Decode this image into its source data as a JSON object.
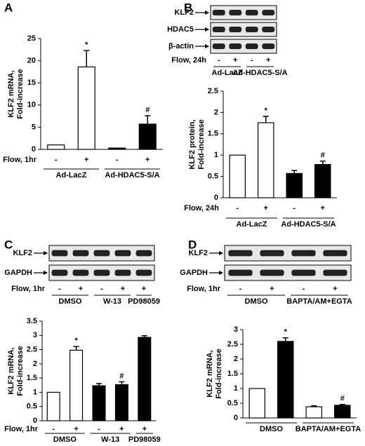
{
  "panel_labels": [
    "A",
    "B",
    "C",
    "D"
  ],
  "blots": [
    {
      "rows": [
        "KLF2",
        "HDAC5",
        "β-actin"
      ],
      "flow_label": "Flow, 24h",
      "groups": [
        {
          "name": "Ad-LacZ",
          "signs": [
            "-",
            "+"
          ]
        },
        {
          "name": "Ad-HDAC5-S/A",
          "signs": [
            "-",
            "+"
          ]
        }
      ]
    },
    {
      "rows": [
        "KLF2",
        "GAPDH"
      ],
      "flow_label": "Flow, 1hr",
      "groups": [
        {
          "name": "DMSO",
          "signs": [
            "-",
            "+"
          ]
        },
        {
          "name": "W-13",
          "signs": [
            "-",
            "+"
          ]
        },
        {
          "name": "PD98059",
          "signs": [
            "+"
          ]
        }
      ]
    },
    {
      "rows": [
        "KLF2",
        "GAPDH"
      ],
      "flow_label": "Flow, 1hr",
      "groups": [
        {
          "name": "DMSO",
          "signs": [
            "-",
            "+"
          ]
        },
        {
          "name": "BAPTA/AM+EGTA",
          "signs": [
            "-",
            "+"
          ]
        }
      ]
    }
  ],
  "chart_data": [
    {
      "type": "bar",
      "ylabel": [
        "KLF2 mRNA,",
        "Fold-increase"
      ],
      "flow_label": "Flow, 1hr",
      "groups": [
        {
          "name": "Ad-LacZ",
          "categories": [
            "-",
            "+"
          ]
        },
        {
          "name": "Ad-HDAC5-S/A",
          "categories": [
            "-",
            "+"
          ]
        }
      ],
      "values": [
        1,
        18.6,
        0.3,
        5.7
      ],
      "errors": [
        null,
        3.7,
        null,
        1.9
      ],
      "colors": [
        "#ffffff",
        "#ffffff",
        "#000000",
        "#000000"
      ],
      "annotations": [
        null,
        "*",
        null,
        "#"
      ],
      "ylim": [
        0,
        25
      ],
      "yticks": [
        0,
        5,
        10,
        15,
        20,
        25
      ]
    },
    {
      "type": "bar",
      "ylabel": [
        "KLF2 protein,",
        "Fold-increase"
      ],
      "flow_label": "Flow, 24h",
      "groups": [
        {
          "name": "Ad-LacZ",
          "categories": [
            "-",
            "+"
          ]
        },
        {
          "name": "Ad-HDAC5-S/A",
          "categories": [
            "-",
            "+"
          ]
        }
      ],
      "values": [
        1,
        1.76,
        0.57,
        0.78
      ],
      "errors": [
        null,
        0.15,
        0.07,
        0.08
      ],
      "colors": [
        "#ffffff",
        "#ffffff",
        "#000000",
        "#000000"
      ],
      "annotations": [
        null,
        "*",
        null,
        "#"
      ],
      "ylim": [
        0,
        2.5
      ],
      "yticks": [
        0,
        0.5,
        1,
        1.5,
        2,
        2.5
      ]
    },
    {
      "type": "bar",
      "ylabel": [
        "KLF2 mRNA,",
        "Fold-increase"
      ],
      "flow_label": "Flow, 1hr",
      "groups": [
        {
          "name": "DMSO",
          "categories": [
            "-",
            "+"
          ]
        },
        {
          "name": "W-13",
          "categories": [
            "-",
            "+"
          ]
        },
        {
          "name": "PD98059",
          "categories": [
            "+"
          ]
        }
      ],
      "values": [
        1,
        2.48,
        1.23,
        1.27,
        2.93
      ],
      "errors": [
        null,
        0.13,
        0.08,
        0.1,
        0.06
      ],
      "colors": [
        "#ffffff",
        "#ffffff",
        "#000000",
        "#000000",
        "#000000"
      ],
      "annotations": [
        null,
        "*",
        null,
        "#",
        null
      ],
      "ylim": [
        0,
        3.5
      ],
      "yticks": [
        0,
        0.5,
        1,
        1.5,
        2,
        2.5,
        3,
        3.5
      ]
    },
    {
      "type": "bar",
      "ylabel": [
        "KLF2 mRNA,",
        "Fold-increase"
      ],
      "groups": [
        {
          "name": "DMSO",
          "categories": [
            null,
            null
          ]
        },
        {
          "name": "BAPTA/AM+EGTA",
          "categories": [
            null,
            null
          ]
        }
      ],
      "values": [
        1,
        2.6,
        0.38,
        0.43
      ],
      "errors": [
        null,
        0.12,
        0.03,
        0.03
      ],
      "colors": [
        "#ffffff",
        "#000000",
        "#ffffff",
        "#000000"
      ],
      "annotations": [
        null,
        "*",
        null,
        "#"
      ],
      "ylim": [
        0,
        3
      ],
      "yticks": [
        0,
        0.5,
        1,
        1.5,
        2,
        2.5,
        3
      ]
    }
  ]
}
